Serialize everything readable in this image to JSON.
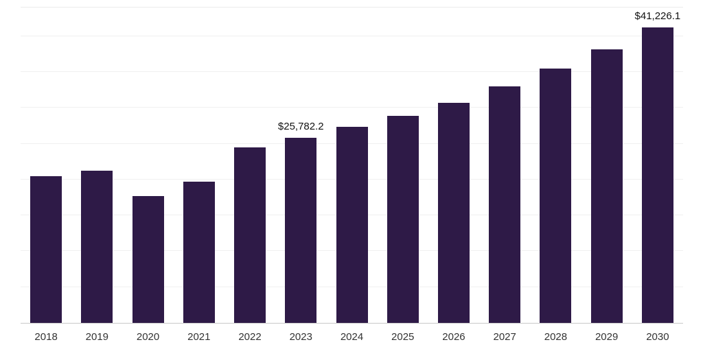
{
  "chart_data": {
    "type": "bar",
    "title": "",
    "xlabel": "",
    "ylabel": "",
    "categories": [
      "2018",
      "2019",
      "2020",
      "2021",
      "2022",
      "2023",
      "2024",
      "2025",
      "2026",
      "2027",
      "2028",
      "2029",
      "2030"
    ],
    "values": [
      20500,
      21250,
      17700,
      19700,
      24500,
      25782.2,
      27400,
      28900,
      30700,
      33000,
      35500,
      38200,
      41226.1
    ],
    "annotations": [
      {
        "index": 5,
        "text": "$25,782.2"
      },
      {
        "index": 12,
        "text": "$41,226.1"
      }
    ],
    "ylim": [
      0,
      44000
    ],
    "grid": true,
    "grid_step": 5000,
    "legend": "none",
    "bar_color": "#2e1a47",
    "grid_color": "#f0f0f0",
    "axis_line_color": "#c9c9c9",
    "tick_label_color": "#333333",
    "annotation_color": "#111111"
  }
}
